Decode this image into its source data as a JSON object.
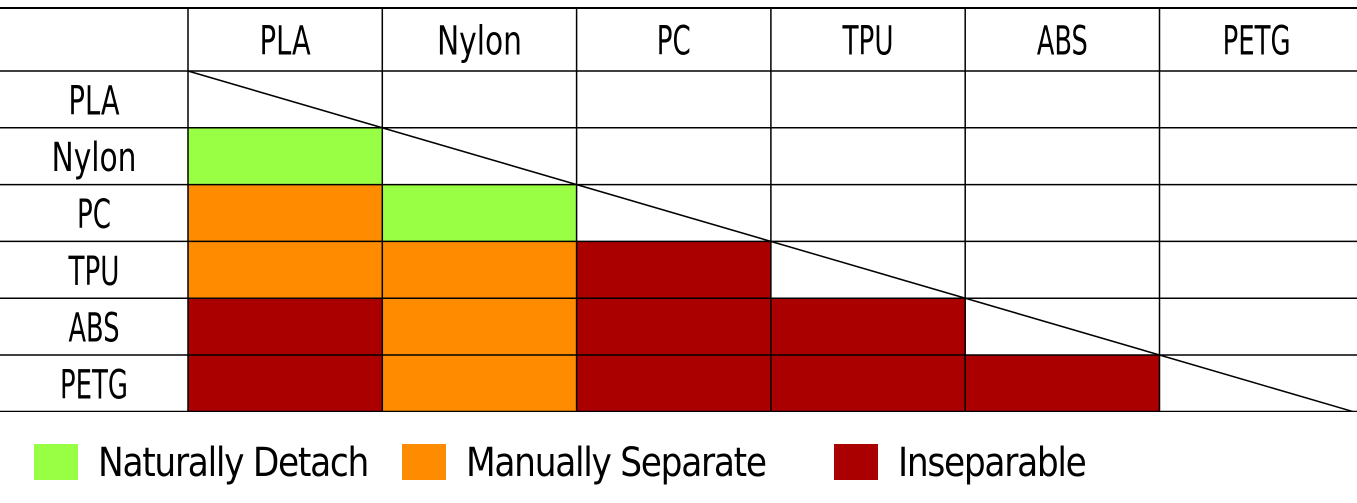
{
  "chart_data": {
    "type": "heatmap",
    "columns": [
      "PLA",
      "Nylon",
      "PC",
      "TPU",
      "ABS",
      "PETG"
    ],
    "rows": [
      "PLA",
      "Nylon",
      "PC",
      "TPU",
      "ABS",
      "PETG"
    ],
    "cells": [
      [
        null,
        null,
        null,
        null,
        null,
        null
      ],
      [
        "naturally_detach",
        null,
        null,
        null,
        null,
        null
      ],
      [
        "manually_separate",
        "naturally_detach",
        null,
        null,
        null,
        null
      ],
      [
        "manually_separate",
        "manually_separate",
        "inseparable",
        null,
        null,
        null
      ],
      [
        "inseparable",
        "manually_separate",
        "inseparable",
        "inseparable",
        null,
        null
      ],
      [
        "inseparable",
        "manually_separate",
        "inseparable",
        "inseparable",
        "inseparable",
        null
      ]
    ],
    "diagonal_line": true,
    "legend": [
      {
        "key": "naturally_detach",
        "label": "Naturally Detach",
        "color": "#99ff44"
      },
      {
        "key": "manually_separate",
        "label": "Manually Separate",
        "color": "#ff8c00"
      },
      {
        "key": "inseparable",
        "label": "Inseparable",
        "color": "#aa0000"
      }
    ],
    "legend_position": "bottom"
  }
}
